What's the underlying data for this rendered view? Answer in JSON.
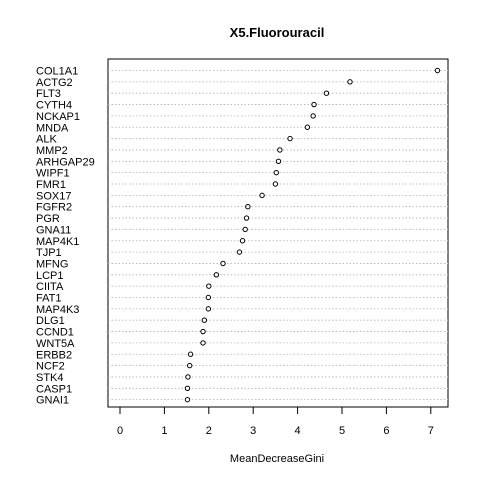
{
  "chart_data": {
    "type": "scatter",
    "title": "X5.Fluorouracil",
    "xlabel": "MeanDecreaseGini",
    "ylabel": "",
    "xlim": [
      -0.3,
      7.4
    ],
    "xticks": [
      0,
      1,
      2,
      3,
      4,
      5,
      6,
      7
    ],
    "grid": "dotted horizontal lines per row",
    "points": [
      {
        "label": "COL1A1",
        "value": 7.15
      },
      {
        "label": "ACTG2",
        "value": 5.18
      },
      {
        "label": "FLT3",
        "value": 4.65
      },
      {
        "label": "CYTH4",
        "value": 4.37
      },
      {
        "label": "NCKAP1",
        "value": 4.35
      },
      {
        "label": "MNDA",
        "value": 4.22
      },
      {
        "label": "ALK",
        "value": 3.83
      },
      {
        "label": "MMP2",
        "value": 3.6
      },
      {
        "label": "ARHGAP29",
        "value": 3.57
      },
      {
        "label": "WIPF1",
        "value": 3.52
      },
      {
        "label": "FMR1",
        "value": 3.5
      },
      {
        "label": "SOX17",
        "value": 3.2
      },
      {
        "label": "FGFR2",
        "value": 2.88
      },
      {
        "label": "PGR",
        "value": 2.85
      },
      {
        "label": "GNA11",
        "value": 2.82
      },
      {
        "label": "MAP4K1",
        "value": 2.76
      },
      {
        "label": "TJP1",
        "value": 2.69
      },
      {
        "label": "MFNG",
        "value": 2.32
      },
      {
        "label": "LCP1",
        "value": 2.17
      },
      {
        "label": "CIITA",
        "value": 2.0
      },
      {
        "label": "FAT1",
        "value": 1.99
      },
      {
        "label": "MAP4K3",
        "value": 1.99
      },
      {
        "label": "DLG1",
        "value": 1.9
      },
      {
        "label": "CCND1",
        "value": 1.87
      },
      {
        "label": "WNT5A",
        "value": 1.87
      },
      {
        "label": "ERBB2",
        "value": 1.59
      },
      {
        "label": "NCF2",
        "value": 1.57
      },
      {
        "label": "STK4",
        "value": 1.53
      },
      {
        "label": "CASP1",
        "value": 1.52
      },
      {
        "label": "GNAI1",
        "value": 1.52
      }
    ]
  }
}
